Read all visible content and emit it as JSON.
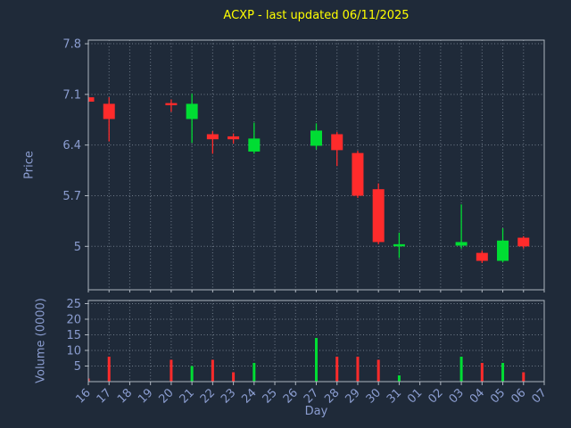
{
  "title": "ACXP - last updated 06/11/2025",
  "colors": {
    "background": "#1f2a39",
    "title": "#ffff00",
    "tick_label": "#8b9dd0",
    "grid": "#6f7b89",
    "spine": "#aeb6c0",
    "up": "#00dd33",
    "down": "#ff2b2b"
  },
  "chart_data": [
    {
      "type": "candlestick",
      "title": "ACXP - last updated 06/11/2025",
      "xlabel": "Day",
      "ylabel": "Price",
      "ylim": [
        4.4,
        7.85
      ],
      "yticks": [
        7.8,
        7.1,
        6.4,
        5.7,
        5
      ],
      "grid": true,
      "legend": false,
      "x_tick_labels": [
        "16",
        "17",
        "18",
        "19",
        "20",
        "21",
        "22",
        "23",
        "24",
        "25",
        "26",
        "27",
        "28",
        "29",
        "30",
        "31",
        "01",
        "02",
        "03",
        "04",
        "05",
        "06",
        "07"
      ],
      "candles": [
        {
          "day": "16",
          "open": 7.06,
          "high": 7.09,
          "low": 6.99,
          "close": 7.0,
          "dir": "down"
        },
        {
          "day": "17",
          "open": 6.97,
          "high": 7.06,
          "low": 6.45,
          "close": 6.76,
          "dir": "down"
        },
        {
          "day": "20",
          "open": 6.98,
          "high": 7.03,
          "low": 6.86,
          "close": 6.95,
          "dir": "down"
        },
        {
          "day": "21",
          "open": 6.76,
          "high": 7.11,
          "low": 6.43,
          "close": 6.97,
          "dir": "up"
        },
        {
          "day": "22",
          "open": 6.55,
          "high": 6.59,
          "low": 6.28,
          "close": 6.48,
          "dir": "down"
        },
        {
          "day": "23",
          "open": 6.52,
          "high": 6.56,
          "low": 6.42,
          "close": 6.48,
          "dir": "down"
        },
        {
          "day": "24",
          "open": 6.31,
          "high": 6.71,
          "low": 6.28,
          "close": 6.49,
          "dir": "up"
        },
        {
          "day": "27",
          "open": 6.39,
          "high": 6.7,
          "low": 6.34,
          "close": 6.6,
          "dir": "up"
        },
        {
          "day": "28",
          "open": 6.55,
          "high": 6.58,
          "low": 6.11,
          "close": 6.33,
          "dir": "down"
        },
        {
          "day": "29",
          "open": 6.29,
          "high": 6.32,
          "low": 5.67,
          "close": 5.7,
          "dir": "down"
        },
        {
          "day": "30",
          "open": 5.79,
          "high": 5.87,
          "low": 5.03,
          "close": 5.06,
          "dir": "down"
        },
        {
          "day": "31",
          "open": 5.0,
          "high": 5.19,
          "low": 4.84,
          "close": 5.03,
          "dir": "up"
        },
        {
          "day": "03",
          "open": 5.01,
          "high": 5.58,
          "low": 4.97,
          "close": 5.06,
          "dir": "up"
        },
        {
          "day": "04",
          "open": 4.91,
          "high": 4.94,
          "low": 4.77,
          "close": 4.8,
          "dir": "down"
        },
        {
          "day": "05",
          "open": 4.8,
          "high": 5.25,
          "low": 4.78,
          "close": 5.08,
          "dir": "up"
        },
        {
          "day": "06",
          "open": 5.12,
          "high": 5.14,
          "low": 4.97,
          "close": 5.0,
          "dir": "down"
        }
      ]
    },
    {
      "type": "bar",
      "xlabel": "Day",
      "ylabel": "Volume (0000)",
      "ylim": [
        0,
        26
      ],
      "yticks": [
        25,
        20,
        15,
        10,
        5
      ],
      "grid": true,
      "x_tick_labels": [
        "16",
        "17",
        "18",
        "19",
        "20",
        "21",
        "22",
        "23",
        "24",
        "25",
        "26",
        "27",
        "28",
        "29",
        "30",
        "31",
        "01",
        "02",
        "03",
        "04",
        "05",
        "06",
        "07"
      ],
      "bars": [
        {
          "day": "16",
          "value": 1,
          "dir": "down"
        },
        {
          "day": "17",
          "value": 8,
          "dir": "down"
        },
        {
          "day": "20",
          "value": 7,
          "dir": "down"
        },
        {
          "day": "21",
          "value": 5,
          "dir": "up"
        },
        {
          "day": "22",
          "value": 7,
          "dir": "down"
        },
        {
          "day": "23",
          "value": 3,
          "dir": "down"
        },
        {
          "day": "24",
          "value": 6,
          "dir": "up"
        },
        {
          "day": "27",
          "value": 14,
          "dir": "up"
        },
        {
          "day": "28",
          "value": 8,
          "dir": "down"
        },
        {
          "day": "29",
          "value": 8,
          "dir": "down"
        },
        {
          "day": "30",
          "value": 7,
          "dir": "down"
        },
        {
          "day": "31",
          "value": 2,
          "dir": "up"
        },
        {
          "day": "03",
          "value": 8,
          "dir": "up"
        },
        {
          "day": "04",
          "value": 6,
          "dir": "down"
        },
        {
          "day": "05",
          "value": 6,
          "dir": "up"
        },
        {
          "day": "06",
          "value": 3,
          "dir": "down"
        }
      ]
    }
  ]
}
